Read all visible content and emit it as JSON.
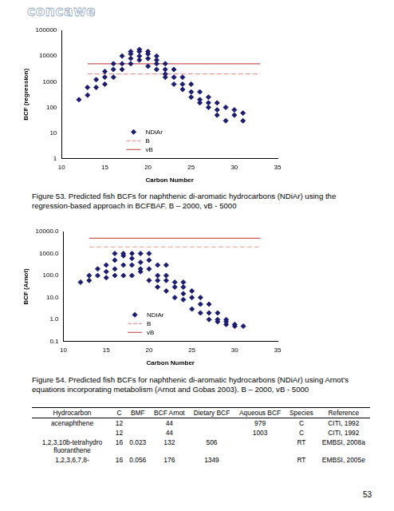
{
  "header": {
    "logo": "concawe"
  },
  "chart_data": [
    {
      "type": "scatter",
      "x_label": "Carbon Number",
      "y_label": "BCF (regression)",
      "log": "y",
      "grid": false,
      "legend": "bottom",
      "xlim": [
        10,
        35
      ],
      "xticks": [
        10,
        15,
        20,
        25,
        30,
        35
      ],
      "ylim": [
        1,
        100000
      ],
      "yticks": [
        1,
        10,
        100,
        1000,
        10000,
        100000
      ],
      "series": [
        {
          "name": "NDiAr",
          "type": "scatter",
          "marker": "diamond",
          "color": "#1c1c72",
          "x": [
            12,
            13,
            13,
            14,
            14,
            15,
            15,
            15,
            16,
            16,
            16,
            17,
            17,
            17,
            18,
            18,
            18,
            18,
            19,
            19,
            19,
            19,
            20,
            20,
            20,
            20,
            21,
            21,
            21,
            21,
            22,
            22,
            22,
            22,
            23,
            23,
            23,
            24,
            24,
            24,
            25,
            25,
            25,
            26,
            26,
            26,
            27,
            27,
            27,
            28,
            28,
            28,
            29,
            29,
            30,
            30,
            31,
            31
          ],
          "values": [
            200,
            300,
            600,
            600,
            1200,
            800,
            1500,
            2500,
            1500,
            3000,
            5000,
            3000,
            5000,
            10000,
            5000,
            8000,
            12000,
            15000,
            7000,
            10000,
            15000,
            18000,
            4000,
            8000,
            12000,
            15000,
            3000,
            5000,
            7000,
            10000,
            1500,
            2000,
            3000,
            5000,
            800,
            1500,
            3000,
            500,
            800,
            1500,
            250,
            400,
            800,
            150,
            200,
            400,
            100,
            150,
            250,
            50,
            80,
            150,
            30,
            100,
            50,
            80,
            30,
            60
          ]
        },
        {
          "name": "B",
          "type": "line",
          "line_style": "dashed",
          "color": "#e89a9a",
          "x": [
            13,
            33
          ],
          "values": [
            2000,
            2000
          ]
        },
        {
          "name": "vB",
          "type": "line",
          "line_style": "solid",
          "color": "#cc5a5a",
          "x": [
            13,
            33
          ],
          "values": [
            5000,
            5000
          ]
        }
      ]
    },
    {
      "type": "scatter",
      "x_label": "Carbon Number",
      "y_label": "BCF (Arnot)",
      "log": "y",
      "grid": false,
      "legend": "bottom",
      "xlim": [
        10,
        35
      ],
      "xticks": [
        10,
        15,
        20,
        25,
        30,
        35
      ],
      "ylim": [
        0.1,
        10000
      ],
      "yticks": [
        0.1,
        {
          "value": 1,
          "label": "1.0"
        },
        {
          "value": 10,
          "label": "10.0"
        },
        {
          "value": 100,
          "label": "100.0"
        },
        {
          "value": 1000,
          "label": "1000.0"
        },
        {
          "value": 10000,
          "label": "10000.0"
        }
      ],
      "series": [
        {
          "name": "NDiAr",
          "type": "scatter",
          "marker": "diamond",
          "color": "#1c1c72",
          "x": [
            12,
            13,
            13,
            14,
            14,
            15,
            15,
            15,
            16,
            16,
            16,
            16,
            17,
            17,
            17,
            17,
            18,
            18,
            18,
            18,
            19,
            19,
            19,
            19,
            20,
            20,
            20,
            20,
            21,
            21,
            21,
            21,
            22,
            22,
            22,
            22,
            23,
            23,
            23,
            24,
            24,
            24,
            24,
            25,
            25,
            25,
            26,
            26,
            26,
            27,
            27,
            27,
            28,
            28,
            28,
            29,
            29,
            29,
            30,
            30,
            31
          ],
          "values": [
            50,
            60,
            100,
            100,
            200,
            80,
            150,
            300,
            100,
            200,
            500,
            1000,
            100,
            300,
            800,
            1000,
            100,
            300,
            600,
            1000,
            150,
            200,
            400,
            1000,
            60,
            200,
            500,
            1000,
            30,
            60,
            100,
            300,
            20,
            60,
            100,
            300,
            10,
            30,
            50,
            8,
            15,
            30,
            50,
            3,
            10,
            20,
            2,
            5,
            10,
            1,
            2,
            5,
            0.8,
            1,
            2,
            0.6,
            0.8,
            1,
            0.5,
            0.6,
            0.5
          ]
        },
        {
          "name": "B",
          "type": "line",
          "line_style": "dashed",
          "color": "#e89a9a",
          "x": [
            13,
            33
          ],
          "values": [
            2000,
            2000
          ]
        },
        {
          "name": "vB",
          "type": "line",
          "line_style": "solid",
          "color": "#cc5a5a",
          "x": [
            13,
            33
          ],
          "values": [
            5000,
            5000
          ]
        }
      ]
    }
  ],
  "captions": [
    "Figure 53. Predicted fish BCFs for naphthenic di-aromatic hydrocarbons (NDiAr) using the regression-based approach in BCFBAF. B – 2000, vB - 5000",
    "Figure 54. Predicted fish BCFs for naphthenic di-aromatic hydrocarbons (NDiAr) using Arnot’s equations incorporating metabolism (Arnot and Gobas 2003). B – 2000, vB - 5000"
  ],
  "table": {
    "columns": [
      "Hydrocarbon",
      "C",
      "BMF",
      "BCF Arnot",
      "Dietary BCF",
      "Aqueous BCF",
      "Species",
      "Reference"
    ],
    "rows": [
      [
        "acenaphthene",
        "12",
        null,
        "44",
        null,
        "979",
        "C",
        "CITI, 1992"
      ],
      [
        null,
        "12",
        null,
        "44",
        null,
        "1003",
        "C",
        "CITI, 1992"
      ],
      [
        "1,2,3,10b-tetrahydro fluoranthene",
        "16",
        "0.023",
        "132",
        "506",
        null,
        "RT",
        "EMBSI, 2008a"
      ],
      [
        "1,2,3,6,7,8-",
        "16",
        "0.056",
        "176",
        "1349",
        null,
        "RT",
        "EMBSI, 2005e"
      ]
    ]
  },
  "page_number": 53
}
